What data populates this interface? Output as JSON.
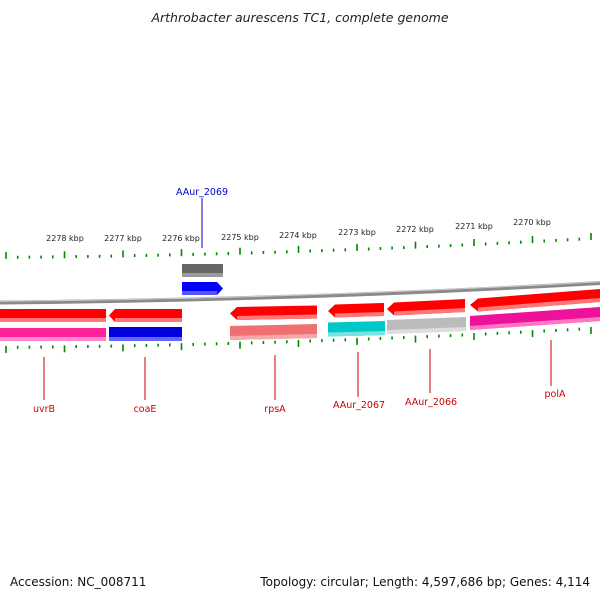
{
  "title": "Arthrobacter aurescens TC1, complete genome",
  "accession_text": "Accession: NC_008711",
  "topology_text": "Topology: circular; Length: 4,597,686 bp; Genes: 4,114",
  "colors": {
    "backbone": "#8a8a8a",
    "ticks": "#008800",
    "label_red": "#cc0000",
    "label_blue": "#0000cc"
  },
  "tick_labels": [
    "2278 kbp",
    "2277 kbp",
    "2276 kbp",
    "2275 kbp",
    "2274 kbp",
    "2273 kbp",
    "2272 kbp",
    "2271 kbp",
    "2270 kbp"
  ],
  "genes": [
    {
      "name": "uvrB",
      "label_color": "#cc0000",
      "arrow_color": "#ff0000",
      "lower_color": "#ff2299"
    },
    {
      "name": "coaE",
      "label_color": "#cc0000",
      "arrow_color": "#ff0000",
      "lower_color": "#0000dd"
    },
    {
      "name": "AAur_2069",
      "label_color": "#0000cc",
      "arrow_color": "#0000ff",
      "upper_color": "#666666"
    },
    {
      "name": "rpsA",
      "label_color": "#cc0000",
      "arrow_color": "#ff0000",
      "lower_color": "#ee7070"
    },
    {
      "name": "AAur_2067",
      "label_color": "#cc0000",
      "arrow_color": "#ff0000",
      "lower_color": "#00c8c8"
    },
    {
      "name": "AAur_2066",
      "label_color": "#cc0000",
      "arrow_color": "#ff0000",
      "lower_color": "#bbbbbb"
    },
    {
      "name": "polA",
      "label_color": "#cc0000",
      "arrow_color": "#ff0000",
      "lower_color": "#ee1199"
    }
  ]
}
